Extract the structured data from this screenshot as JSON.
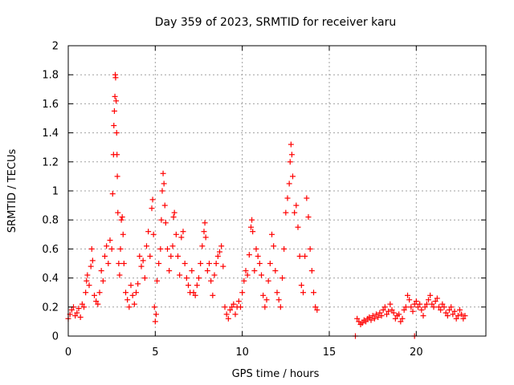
{
  "chart_data": {
    "type": "scatter",
    "title": "Day 359 of 2023, SRMTID for receiver karu",
    "xlabel": "GPS time / hours",
    "ylabel": "SRMTID / TECUs",
    "xlim": [
      0,
      24
    ],
    "ylim": [
      0,
      2
    ],
    "xticks": [
      0,
      5,
      10,
      15,
      20
    ],
    "xtick_labels": [
      "0",
      "5",
      "10",
      "15",
      "20"
    ],
    "yticks": [
      0,
      0.2,
      0.4,
      0.6,
      0.8,
      1,
      1.2,
      1.4,
      1.6,
      1.8,
      2
    ],
    "ytick_labels": [
      "0",
      "0.2",
      "0.4",
      "0.6",
      "0.8",
      "1",
      "1.2",
      "1.4",
      "1.6",
      "1.8",
      "2"
    ],
    "grid": true,
    "marker": "+",
    "color": "#ff0000",
    "series": [
      {
        "name": "SRMTID",
        "points": [
          [
            0.0,
            0.12
          ],
          [
            0.1,
            0.15
          ],
          [
            0.2,
            0.18
          ],
          [
            0.3,
            0.2
          ],
          [
            0.4,
            0.14
          ],
          [
            0.5,
            0.16
          ],
          [
            0.6,
            0.19
          ],
          [
            0.7,
            0.13
          ],
          [
            0.8,
            0.22
          ],
          [
            0.9,
            0.2
          ],
          [
            1.0,
            0.3
          ],
          [
            1.05,
            0.38
          ],
          [
            1.1,
            0.42
          ],
          [
            1.2,
            0.35
          ],
          [
            1.3,
            0.48
          ],
          [
            1.35,
            0.6
          ],
          [
            1.4,
            0.52
          ],
          [
            1.5,
            0.28
          ],
          [
            1.6,
            0.24
          ],
          [
            1.7,
            0.22
          ],
          [
            1.8,
            0.3
          ],
          [
            1.9,
            0.45
          ],
          [
            2.0,
            0.38
          ],
          [
            2.1,
            0.55
          ],
          [
            2.2,
            0.62
          ],
          [
            2.3,
            0.5
          ],
          [
            2.4,
            0.66
          ],
          [
            2.5,
            0.6
          ],
          [
            2.55,
            0.98
          ],
          [
            2.6,
            1.25
          ],
          [
            2.62,
            1.45
          ],
          [
            2.65,
            1.55
          ],
          [
            2.68,
            1.65
          ],
          [
            2.7,
            1.8
          ],
          [
            2.72,
            1.78
          ],
          [
            2.75,
            1.62
          ],
          [
            2.78,
            1.4
          ],
          [
            2.8,
            1.25
          ],
          [
            2.82,
            1.1
          ],
          [
            2.85,
            0.85
          ],
          [
            2.9,
            0.5
          ],
          [
            2.95,
            0.42
          ],
          [
            3.0,
            0.6
          ],
          [
            3.05,
            0.8
          ],
          [
            3.1,
            0.82
          ],
          [
            3.15,
            0.7
          ],
          [
            3.2,
            0.5
          ],
          [
            3.3,
            0.3
          ],
          [
            3.4,
            0.25
          ],
          [
            3.5,
            0.2
          ],
          [
            3.6,
            0.35
          ],
          [
            3.7,
            0.28
          ],
          [
            3.8,
            0.22
          ],
          [
            3.9,
            0.3
          ],
          [
            4.0,
            0.36
          ],
          [
            4.1,
            0.55
          ],
          [
            4.2,
            0.48
          ],
          [
            4.3,
            0.52
          ],
          [
            4.4,
            0.4
          ],
          [
            4.5,
            0.62
          ],
          [
            4.6,
            0.72
          ],
          [
            4.7,
            0.55
          ],
          [
            4.8,
            0.88
          ],
          [
            4.85,
            0.94
          ],
          [
            4.9,
            0.7
          ],
          [
            4.95,
            0.2
          ],
          [
            5.0,
            0.1
          ],
          [
            5.05,
            0.15
          ],
          [
            5.1,
            0.38
          ],
          [
            5.2,
            0.5
          ],
          [
            5.3,
            0.6
          ],
          [
            5.35,
            0.8
          ],
          [
            5.4,
            1.0
          ],
          [
            5.45,
            1.12
          ],
          [
            5.5,
            1.05
          ],
          [
            5.55,
            0.9
          ],
          [
            5.6,
            0.78
          ],
          [
            5.7,
            0.6
          ],
          [
            5.8,
            0.45
          ],
          [
            5.9,
            0.55
          ],
          [
            6.0,
            0.62
          ],
          [
            6.05,
            0.82
          ],
          [
            6.1,
            0.85
          ],
          [
            6.2,
            0.7
          ],
          [
            6.3,
            0.55
          ],
          [
            6.4,
            0.42
          ],
          [
            6.5,
            0.68
          ],
          [
            6.6,
            0.72
          ],
          [
            6.7,
            0.5
          ],
          [
            6.8,
            0.4
          ],
          [
            6.9,
            0.35
          ],
          [
            7.0,
            0.3
          ],
          [
            7.1,
            0.45
          ],
          [
            7.2,
            0.3
          ],
          [
            7.3,
            0.28
          ],
          [
            7.4,
            0.35
          ],
          [
            7.5,
            0.4
          ],
          [
            7.6,
            0.5
          ],
          [
            7.7,
            0.62
          ],
          [
            7.8,
            0.72
          ],
          [
            7.85,
            0.78
          ],
          [
            7.9,
            0.68
          ],
          [
            8.0,
            0.45
          ],
          [
            8.1,
            0.5
          ],
          [
            8.2,
            0.38
          ],
          [
            8.3,
            0.28
          ],
          [
            8.4,
            0.42
          ],
          [
            8.5,
            0.5
          ],
          [
            8.6,
            0.55
          ],
          [
            8.7,
            0.58
          ],
          [
            8.8,
            0.62
          ],
          [
            8.9,
            0.48
          ],
          [
            9.0,
            0.2
          ],
          [
            9.1,
            0.15
          ],
          [
            9.2,
            0.12
          ],
          [
            9.3,
            0.18
          ],
          [
            9.4,
            0.2
          ],
          [
            9.5,
            0.22
          ],
          [
            9.6,
            0.15
          ],
          [
            9.7,
            0.2
          ],
          [
            9.8,
            0.24
          ],
          [
            9.9,
            0.2
          ],
          [
            10.0,
            0.3
          ],
          [
            10.1,
            0.38
          ],
          [
            10.2,
            0.45
          ],
          [
            10.3,
            0.42
          ],
          [
            10.4,
            0.56
          ],
          [
            10.5,
            0.75
          ],
          [
            10.55,
            0.8
          ],
          [
            10.6,
            0.72
          ],
          [
            10.7,
            0.45
          ],
          [
            10.8,
            0.6
          ],
          [
            10.9,
            0.55
          ],
          [
            11.0,
            0.5
          ],
          [
            11.1,
            0.42
          ],
          [
            11.2,
            0.28
          ],
          [
            11.3,
            0.2
          ],
          [
            11.4,
            0.25
          ],
          [
            11.5,
            0.38
          ],
          [
            11.6,
            0.5
          ],
          [
            11.7,
            0.7
          ],
          [
            11.8,
            0.62
          ],
          [
            11.9,
            0.45
          ],
          [
            12.0,
            0.3
          ],
          [
            12.1,
            0.25
          ],
          [
            12.2,
            0.2
          ],
          [
            12.3,
            0.4
          ],
          [
            12.4,
            0.6
          ],
          [
            12.5,
            0.85
          ],
          [
            12.6,
            0.95
          ],
          [
            12.7,
            1.05
          ],
          [
            12.75,
            1.2
          ],
          [
            12.8,
            1.32
          ],
          [
            12.85,
            1.25
          ],
          [
            12.9,
            1.1
          ],
          [
            13.0,
            0.85
          ],
          [
            13.1,
            0.9
          ],
          [
            13.2,
            0.75
          ],
          [
            13.3,
            0.55
          ],
          [
            13.4,
            0.35
          ],
          [
            13.5,
            0.3
          ],
          [
            13.6,
            0.55
          ],
          [
            13.7,
            0.95
          ],
          [
            13.8,
            0.82
          ],
          [
            13.9,
            0.6
          ],
          [
            14.0,
            0.45
          ],
          [
            14.1,
            0.3
          ],
          [
            14.2,
            0.2
          ],
          [
            14.3,
            0.18
          ],
          [
            16.6,
            0.12
          ],
          [
            16.7,
            0.1
          ],
          [
            16.8,
            0.08
          ],
          [
            16.9,
            0.09
          ],
          [
            17.0,
            0.11
          ],
          [
            17.1,
            0.1
          ],
          [
            17.2,
            0.12
          ],
          [
            17.3,
            0.13
          ],
          [
            17.4,
            0.11
          ],
          [
            17.5,
            0.14
          ],
          [
            17.6,
            0.12
          ],
          [
            17.7,
            0.15
          ],
          [
            17.8,
            0.13
          ],
          [
            17.9,
            0.16
          ],
          [
            18.0,
            0.14
          ],
          [
            18.1,
            0.18
          ],
          [
            18.2,
            0.2
          ],
          [
            18.3,
            0.15
          ],
          [
            18.4,
            0.17
          ],
          [
            18.5,
            0.22
          ],
          [
            18.6,
            0.18
          ],
          [
            18.7,
            0.16
          ],
          [
            18.8,
            0.12
          ],
          [
            18.9,
            0.14
          ],
          [
            19.0,
            0.15
          ],
          [
            19.1,
            0.1
          ],
          [
            19.2,
            0.12
          ],
          [
            19.3,
            0.18
          ],
          [
            19.4,
            0.2
          ],
          [
            19.5,
            0.28
          ],
          [
            19.6,
            0.25
          ],
          [
            19.7,
            0.2
          ],
          [
            19.8,
            0.17
          ],
          [
            19.9,
            0.22
          ],
          [
            20.0,
            0.24
          ],
          [
            20.1,
            0.2
          ],
          [
            20.2,
            0.22
          ],
          [
            20.3,
            0.18
          ],
          [
            20.4,
            0.14
          ],
          [
            20.5,
            0.2
          ],
          [
            20.6,
            0.22
          ],
          [
            20.7,
            0.25
          ],
          [
            20.8,
            0.28
          ],
          [
            20.9,
            0.22
          ],
          [
            21.0,
            0.2
          ],
          [
            21.1,
            0.24
          ],
          [
            21.2,
            0.26
          ],
          [
            21.3,
            0.2
          ],
          [
            21.4,
            0.18
          ],
          [
            21.5,
            0.22
          ],
          [
            21.6,
            0.2
          ],
          [
            21.7,
            0.16
          ],
          [
            21.8,
            0.14
          ],
          [
            21.9,
            0.18
          ],
          [
            22.0,
            0.2
          ],
          [
            22.1,
            0.15
          ],
          [
            22.2,
            0.17
          ],
          [
            22.3,
            0.12
          ],
          [
            22.4,
            0.14
          ],
          [
            22.5,
            0.18
          ],
          [
            22.6,
            0.15
          ],
          [
            22.7,
            0.12
          ],
          [
            22.8,
            0.14
          ],
          [
            16.5,
            0.0
          ],
          [
            19.9,
            0.0
          ]
        ]
      }
    ]
  }
}
